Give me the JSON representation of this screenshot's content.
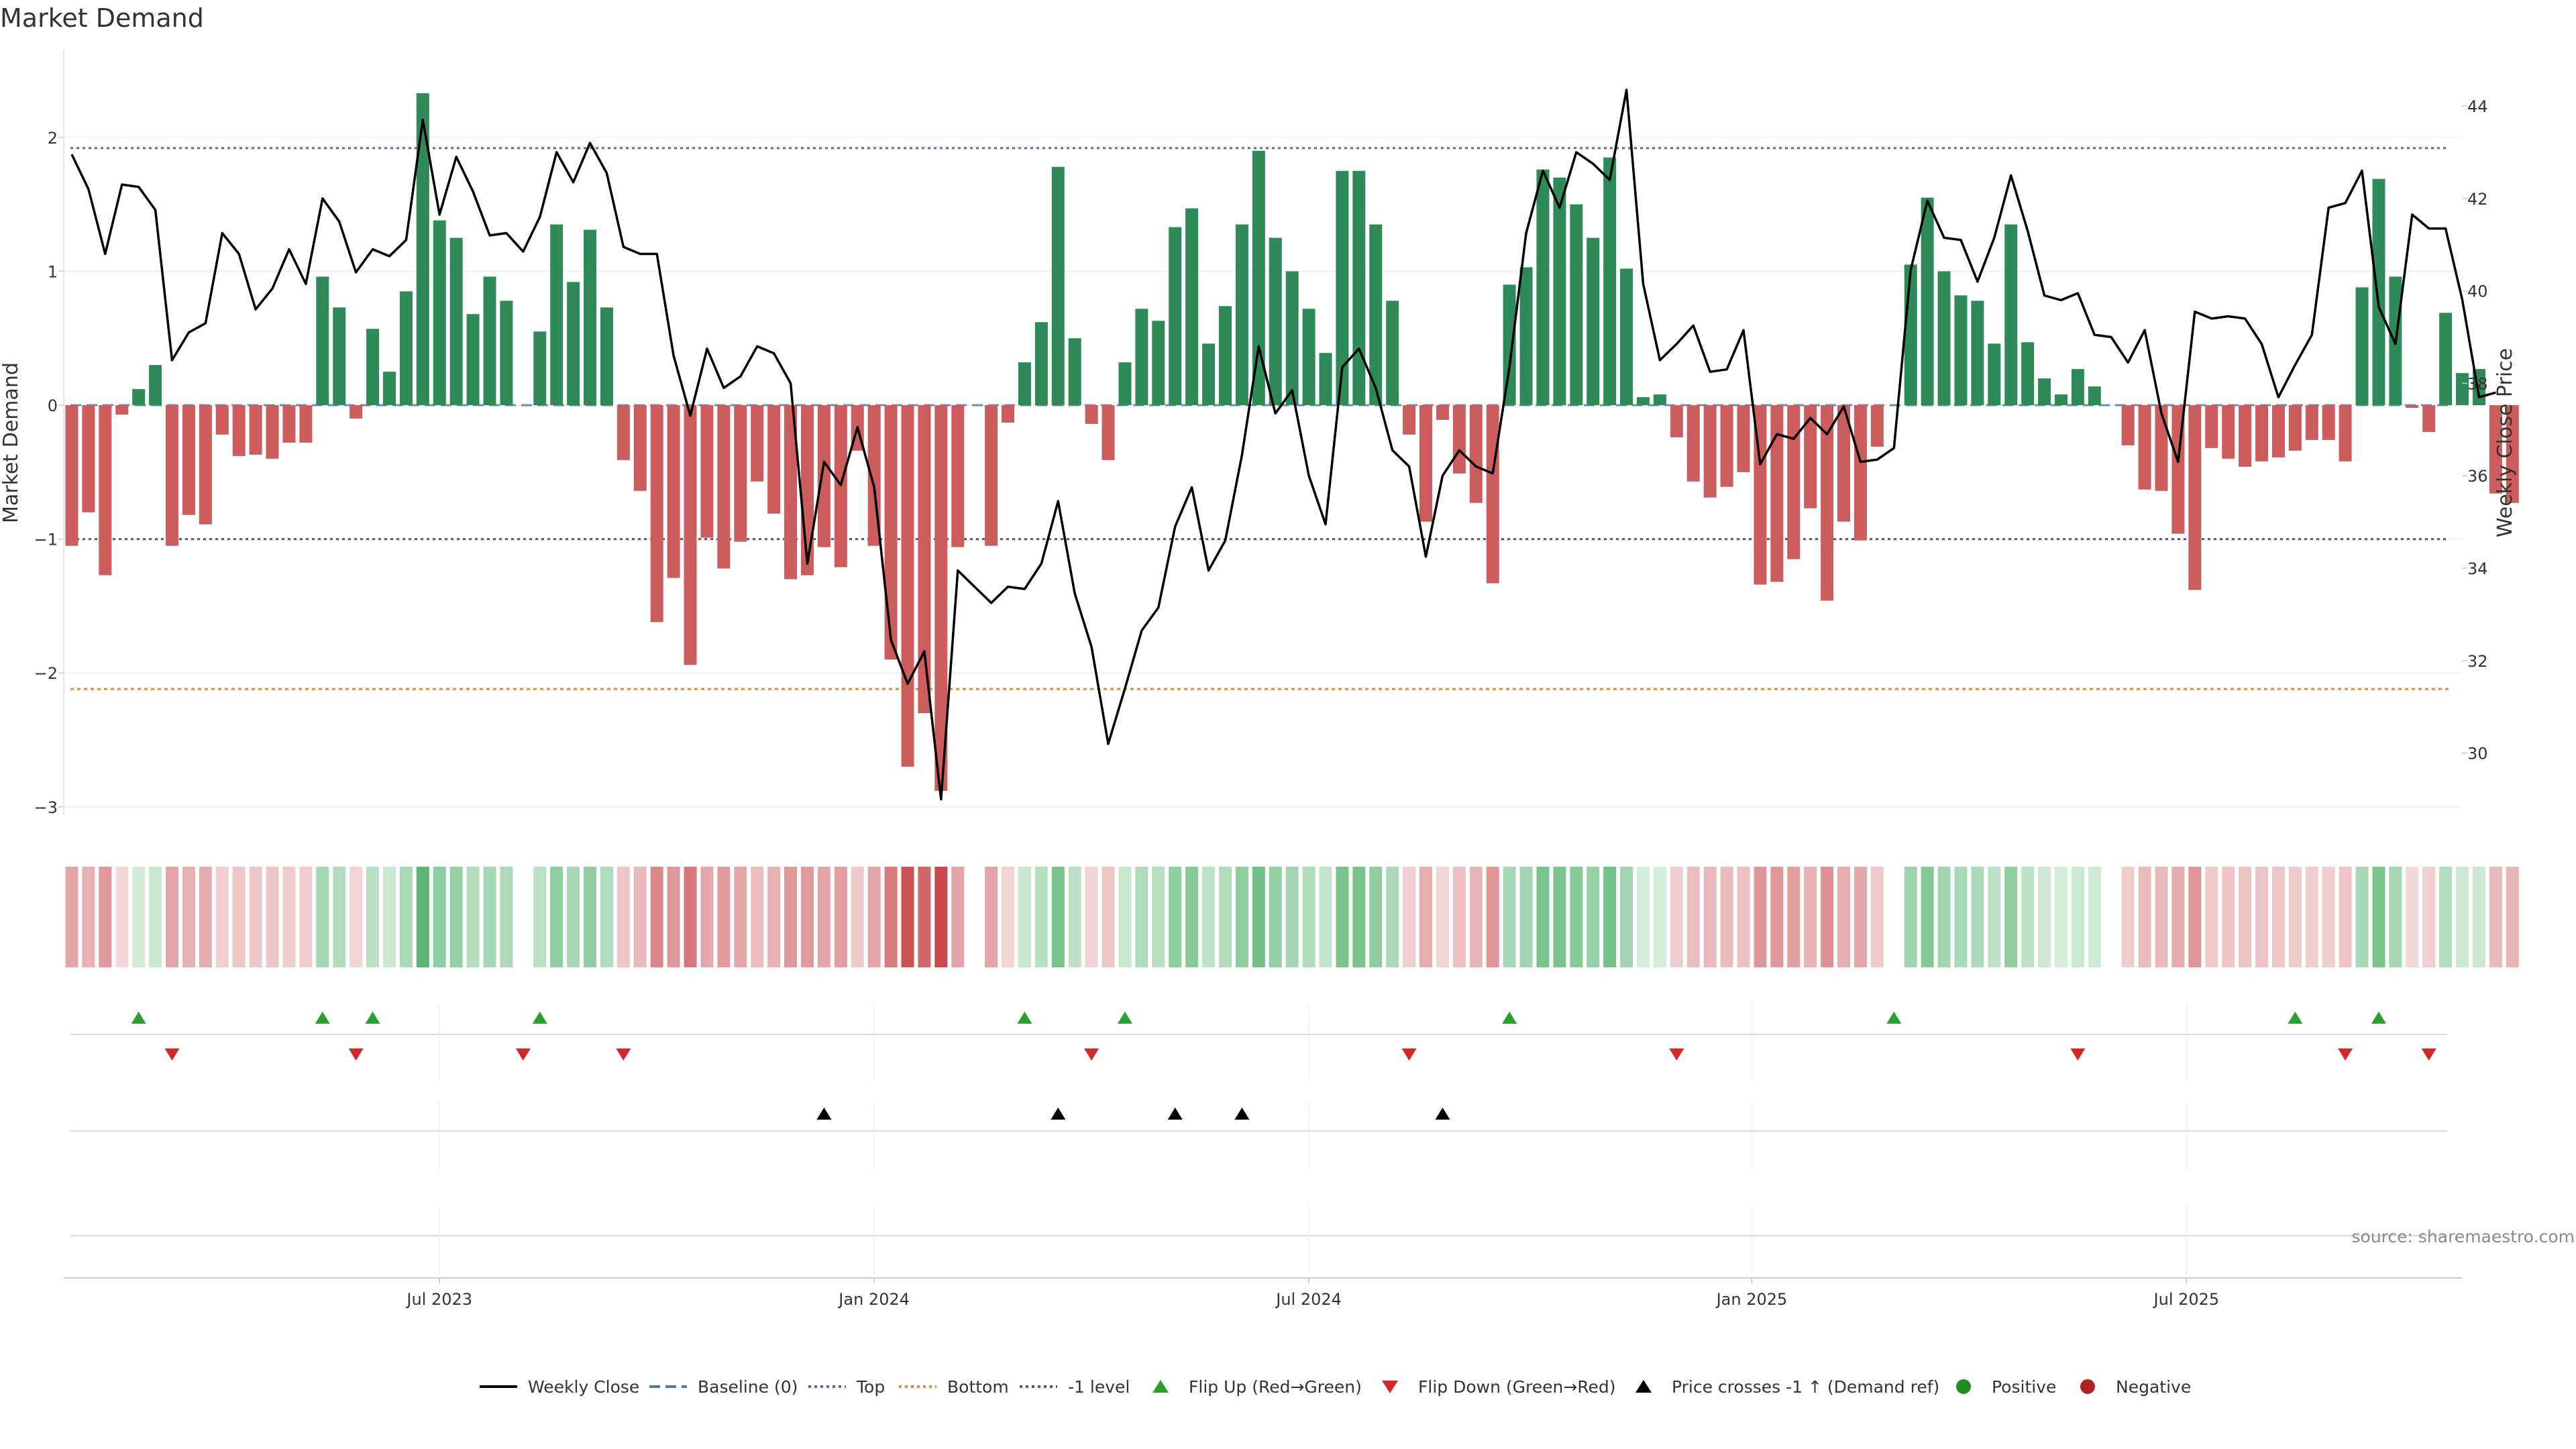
{
  "chart_data": {
    "type": "bar",
    "title": "Market Demand",
    "ylabel": "Market Demand",
    "y2label": "Weekly Close Price",
    "ylim": [
      -3.15,
      2.6
    ],
    "y2lim": [
      28.8,
      44.6
    ],
    "yticks": [
      2,
      1,
      0,
      -1,
      -2,
      -3
    ],
    "ytick_labels": [
      "2",
      "1",
      "0",
      "−1",
      "−2",
      "−3"
    ],
    "y2ticks": [
      44,
      42,
      40,
      38,
      36,
      34,
      32,
      30
    ],
    "y2tick_labels": [
      "44",
      "42",
      "40",
      "38",
      "36",
      "34",
      "32",
      "30"
    ],
    "levels": {
      "top": 1.92,
      "bottom": -2.12,
      "minus_one": -1.0
    },
    "week_count": 144,
    "xticks": [
      {
        "week": 22,
        "label": "Jul 2023"
      },
      {
        "week": 48,
        "label": "Jan 2024"
      },
      {
        "week": 74,
        "label": "Jul 2024"
      },
      {
        "week": 100.5,
        "label": "Jan 2025"
      },
      {
        "week": 126.5,
        "label": "Jul 2025"
      }
    ],
    "demand": [
      -1.05,
      -0.8,
      -1.27,
      -0.07,
      0.12,
      0.3,
      -1.05,
      -0.82,
      -0.89,
      -0.22,
      -0.38,
      -0.37,
      -0.4,
      -0.28,
      -0.28,
      0.96,
      0.73,
      -0.1,
      0.57,
      0.25,
      0.85,
      2.33,
      1.38,
      1.25,
      0.68,
      0.96,
      0.78,
      0.0,
      0.55,
      1.35,
      0.92,
      1.31,
      0.73,
      -0.41,
      -0.64,
      -1.62,
      -1.29,
      -1.94,
      -0.99,
      -1.22,
      -1.02,
      -0.57,
      -0.81,
      -1.3,
      -1.27,
      -1.06,
      -1.21,
      -0.34,
      -1.05,
      -1.9,
      -2.7,
      -2.3,
      -2.88,
      -1.06,
      0.0,
      -1.05,
      -0.13,
      0.32,
      0.62,
      1.78,
      0.5,
      -0.14,
      -0.41,
      0.32,
      0.72,
      0.63,
      1.33,
      1.47,
      0.46,
      0.74,
      1.35,
      1.9,
      1.25,
      1.0,
      0.72,
      0.39,
      1.75,
      1.75,
      1.35,
      0.78,
      -0.22,
      -0.87,
      -0.11,
      -0.51,
      -0.73,
      -1.33,
      0.9,
      1.03,
      1.76,
      1.7,
      1.5,
      1.25,
      1.85,
      1.02,
      0.06,
      0.08,
      -0.24,
      -0.57,
      -0.69,
      -0.61,
      -0.5,
      -1.34,
      -1.32,
      -1.15,
      -0.77,
      -1.46,
      -0.87,
      -1.01,
      -0.31,
      0.0,
      1.05,
      1.55,
      1.0,
      0.82,
      0.78,
      0.46,
      1.35,
      0.47,
      0.2,
      0.08,
      0.27,
      0.14,
      0.0,
      -0.3,
      -0.63,
      -0.64,
      -0.96,
      -1.38,
      -0.32,
      -0.4,
      -0.46,
      -0.42,
      -0.39,
      -0.34,
      -0.26,
      -0.26,
      -0.42,
      0.88,
      1.69,
      0.96,
      -0.02,
      -0.2,
      0.69,
      0.24,
      0.27,
      -0.66,
      -0.73
    ],
    "weekly_close": [
      42.95,
      42.2,
      40.8,
      42.3,
      42.25,
      41.75,
      38.5,
      39.1,
      39.3,
      41.25,
      40.8,
      39.6,
      40.05,
      40.9,
      40.15,
      42.0,
      41.5,
      40.4,
      40.9,
      40.75,
      41.1,
      43.7,
      41.65,
      42.9,
      42.15,
      41.2,
      41.25,
      40.85,
      41.6,
      43.0,
      42.35,
      43.2,
      42.55,
      40.95,
      40.8,
      40.8,
      38.6,
      37.3,
      38.75,
      37.9,
      38.15,
      38.8,
      38.65,
      38.0,
      34.1,
      36.3,
      35.8,
      37.05,
      35.75,
      32.45,
      31.5,
      32.2,
      29.0,
      33.95,
      33.6,
      33.25,
      33.6,
      33.55,
      34.1,
      35.45,
      33.45,
      32.3,
      30.2,
      31.4,
      32.65,
      33.15,
      34.9,
      35.75,
      33.95,
      34.6,
      36.45,
      38.8,
      37.35,
      37.85,
      36.0,
      34.95,
      38.35,
      38.75,
      37.9,
      36.55,
      36.2,
      34.25,
      36.0,
      36.55,
      36.2,
      36.05,
      38.35,
      41.25,
      42.6,
      41.8,
      43.0,
      42.75,
      42.4,
      44.35,
      40.15,
      38.5,
      38.85,
      39.25,
      38.25,
      38.3,
      39.15,
      36.25,
      36.9,
      36.8,
      37.25,
      36.9,
      37.5,
      36.3,
      36.35,
      36.6,
      40.45,
      41.95,
      41.15,
      41.1,
      40.2,
      41.15,
      42.5,
      41.3,
      39.9,
      39.8,
      39.95,
      39.05,
      39.0,
      38.45,
      39.15,
      37.35,
      36.3,
      39.55,
      39.4,
      39.45,
      39.4,
      38.85,
      37.7,
      38.4,
      39.05,
      41.8,
      41.9,
      42.6,
      39.65,
      38.85,
      41.65,
      41.35,
      41.35,
      39.8,
      37.7,
      37.8
    ],
    "flip_up_weeks": [
      4,
      15,
      18,
      28,
      57,
      63,
      86,
      109,
      133,
      138
    ],
    "flip_down_weeks": [
      6,
      17,
      27,
      33,
      61,
      80,
      96,
      120,
      136,
      141
    ],
    "price_cross_weeks": [
      45,
      59,
      66,
      70,
      82
    ],
    "legend": [
      "Weekly Close",
      "Baseline (0)",
      "Top",
      "Bottom",
      "-1 level",
      "Flip Up (Red→Green)",
      "Flip Down (Green→Red)",
      "Price crosses -1 ↑ (Demand ref)",
      "Positive",
      "Negative"
    ],
    "source": "source: sharemaestro.com",
    "colors": {
      "positive": "#2e8b57",
      "negative": "#cd5c5c",
      "close_line": "#000000",
      "baseline": "#4682b4",
      "top": "#6a5acd",
      "bottom": "#e08a2c",
      "minus_one": "#555577",
      "flip_up": "#2ca02c",
      "flip_down": "#d62728",
      "price_cross": "#000000",
      "positive_dot": "#228b22",
      "negative_dot": "#b22222"
    }
  }
}
